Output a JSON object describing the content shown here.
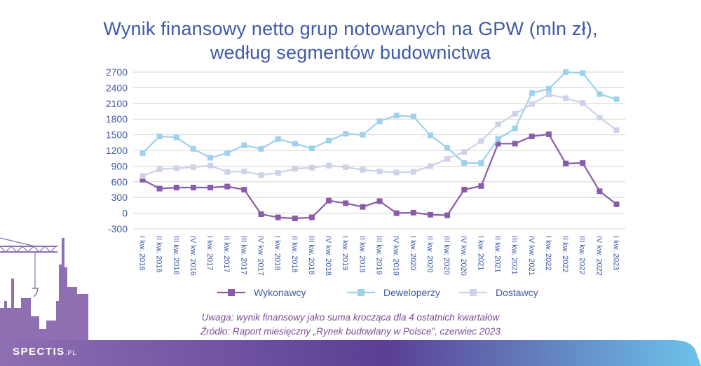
{
  "page": {
    "title_line1": "Wynik finansowy netto grup notowanych na GPW (mln zł),",
    "title_line2": "według segmentów budownictwa",
    "note": "Uwaga: wynik finansowy jako suma krocząca dla 4 ostatnich kwartałów",
    "source": "Źródło: Raport miesięczny „Rynek budowlany w Polsce”, czerwiec 2023",
    "brand": "SPECTIS",
    "brand_suffix": ".PL"
  },
  "colors": {
    "title": "#3f5aa6",
    "axis_text": "#3f5aa6",
    "grid": "#d3d3d3",
    "note": "#7b4d93",
    "footer_gradient": [
      "#8f6fb2",
      "#5a3f95",
      "#6cc3ea"
    ]
  },
  "chart_data": {
    "type": "line",
    "title": "Wynik finansowy netto grup notowanych na GPW (mln zł), według segmentów budownictwa",
    "xlabel": "",
    "ylabel": "",
    "ylim": [
      -300,
      2700
    ],
    "yticks": [
      -300,
      0,
      300,
      600,
      900,
      1200,
      1500,
      1800,
      2100,
      2400,
      2700
    ],
    "grid": true,
    "legend_position": "bottom",
    "categories": [
      "I kw. 2016",
      "II kw. 2016",
      "III kw. 2016",
      "IV kw. 2016",
      "I kw. 2017",
      "II kw. 2017",
      "III kw. 2017",
      "IV kw. 2017",
      "I kw. 2018",
      "II kw. 2018",
      "III kw. 2018",
      "IV kw. 2018",
      "I kw. 2019",
      "II kw. 2019",
      "III kw. 2019",
      "IV kw. 2019",
      "I kw. 2020",
      "II kw. 2020",
      "III kw. 2020",
      "IV kw. 2020",
      "I kw. 2021",
      "II kw. 2021",
      "III kw. 2021",
      "IV kw. 2021",
      "I kw. 2022",
      "II kw. 2022",
      "III kw. 2022",
      "IV kw. 2022",
      "I kw. 2023"
    ],
    "series": [
      {
        "name": "Wykonawcy",
        "color": "#8a5ba8",
        "values": [
          640,
          470,
          490,
          490,
          490,
          510,
          450,
          -20,
          -80,
          -100,
          -80,
          240,
          190,
          120,
          230,
          0,
          10,
          -30,
          -40,
          450,
          520,
          1330,
          1330,
          1470,
          1510,
          950,
          960,
          420,
          170
        ]
      },
      {
        "name": "Deweloperzy",
        "color": "#9dd1ec",
        "values": [
          1150,
          1470,
          1450,
          1230,
          1060,
          1150,
          1300,
          1230,
          1420,
          1330,
          1240,
          1390,
          1520,
          1500,
          1760,
          1870,
          1850,
          1490,
          1250,
          960,
          960,
          1420,
          1620,
          2300,
          2380,
          2700,
          2680,
          2280,
          2180
        ]
      },
      {
        "name": "Dostawcy",
        "color": "#cdd2e8",
        "values": [
          710,
          840,
          860,
          880,
          910,
          790,
          800,
          730,
          770,
          850,
          870,
          910,
          880,
          830,
          800,
          780,
          790,
          900,
          1040,
          1170,
          1380,
          1700,
          1900,
          2090,
          2270,
          2200,
          2110,
          1830,
          1590
        ]
      }
    ]
  }
}
